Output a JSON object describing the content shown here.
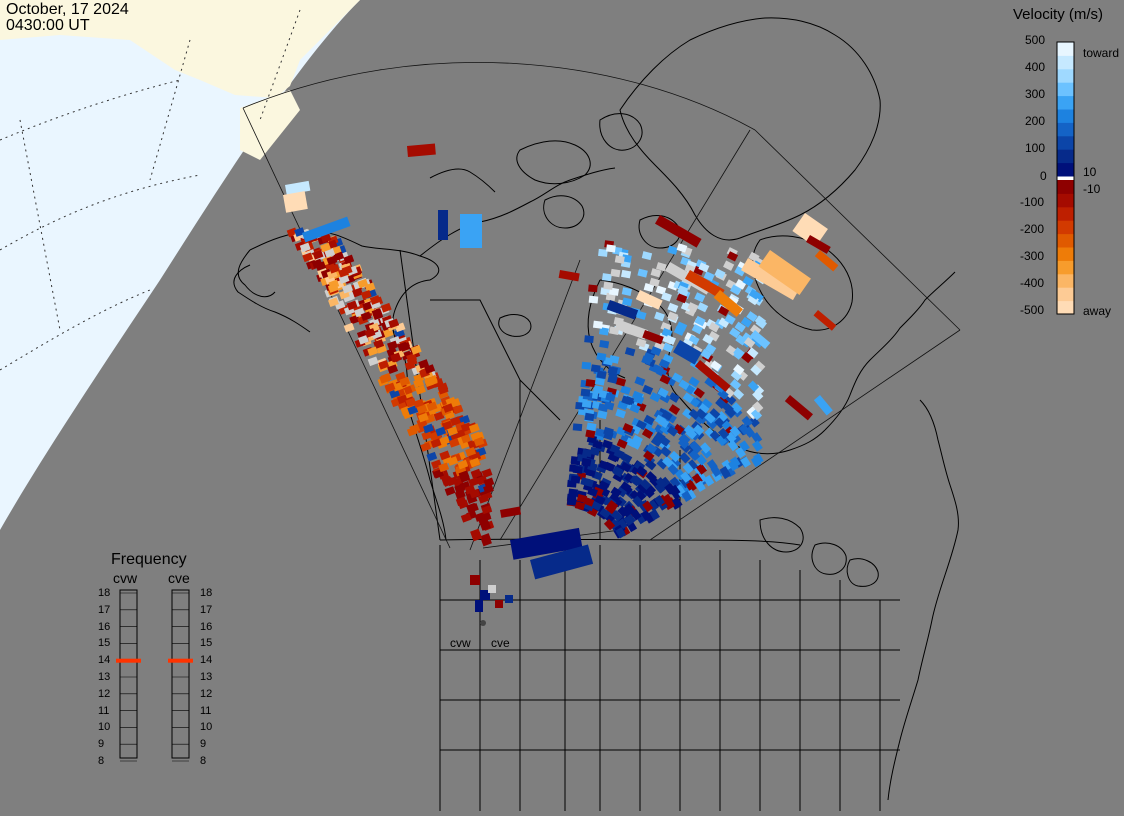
{
  "header": {
    "date": "October, 17 2024",
    "time": "0430:00 UT"
  },
  "velocity_scale": {
    "title": "Velocity (m/s)",
    "ticks": [
      "500",
      "400",
      "300",
      "200",
      "100",
      "10",
      "0",
      "-10",
      "-100",
      "-200",
      "-300",
      "-400",
      "-500"
    ],
    "label_toward": "toward",
    "label_away": "away",
    "colors_toward": [
      "#e8f6ff",
      "#c6e9ff",
      "#9fd9ff",
      "#6cc2ff",
      "#3aa3f4",
      "#1d82e0",
      "#1463c6",
      "#0c45a8",
      "#062a8a",
      "#00107a"
    ],
    "colors_away": [
      "#8e0000",
      "#a50b00",
      "#be1f00",
      "#d23a00",
      "#e05a00",
      "#ee7c08",
      "#f79c2c",
      "#fbb665",
      "#fdcb95",
      "#ffdcb6"
    ]
  },
  "frequency": {
    "title": "Frequency",
    "radars": [
      "cvw",
      "cve"
    ],
    "ticks": [
      "18",
      "17",
      "16",
      "15",
      "14",
      "13",
      "12",
      "11",
      "10",
      "9",
      "8"
    ],
    "current_mhz": [
      14,
      14
    ],
    "marker_color": "#ff3300"
  },
  "map": {
    "radar_labels": [
      "cvw",
      "cve"
    ],
    "land_color": "#7f7f7f",
    "daylight_color": "#eaf6ff",
    "sunlit_land_color": "#fbf7df",
    "grey_scatter_color": "#cfcfcf"
  }
}
